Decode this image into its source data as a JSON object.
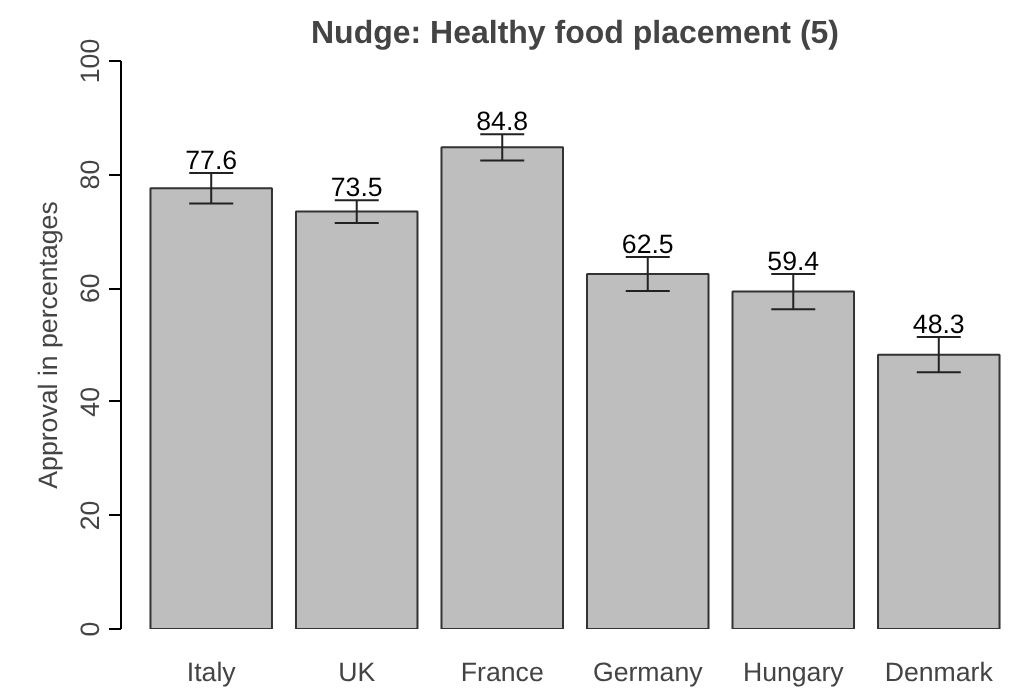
{
  "chart_data": {
    "type": "bar",
    "title": "Nudge: Healthy food placement (5)",
    "ylabel": "Approval in percentages",
    "categories": [
      "Italy",
      "UK",
      "France",
      "Germany",
      "Hungary",
      "Denmark"
    ],
    "values": [
      77.6,
      73.5,
      84.8,
      62.5,
      59.4,
      48.3
    ],
    "errors": [
      2.7,
      2.0,
      2.3,
      3.0,
      3.1,
      3.1
    ],
    "color": "#bebebe",
    "data_labels": true,
    "grid": false,
    "ylim": [
      0,
      100
    ],
    "yticks": [
      0,
      20,
      40,
      60,
      80,
      100
    ]
  }
}
